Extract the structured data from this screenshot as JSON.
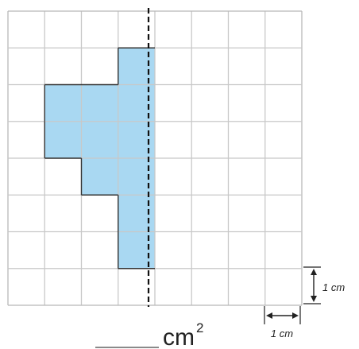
{
  "grid": {
    "rows": 8,
    "cols": 8,
    "line_color": "#c8c8c8",
    "border_color": "#b8b8b8",
    "fill_color": "#a9d8f2",
    "shape_outline_color": "#333333",
    "symmetry_line_color": "#111111",
    "shaded_cells": [
      [
        1,
        3
      ],
      [
        2,
        1
      ],
      [
        2,
        2
      ],
      [
        2,
        3
      ],
      [
        3,
        1
      ],
      [
        3,
        2
      ],
      [
        3,
        3
      ],
      [
        4,
        2
      ],
      [
        4,
        3
      ],
      [
        5,
        3
      ],
      [
        6,
        3
      ]
    ],
    "symmetry_line_after_col": 4
  },
  "dimension_vertical": {
    "label": "1 cm"
  },
  "dimension_horizontal": {
    "label": "1 cm"
  },
  "answer": {
    "blank": "",
    "unit": "cm",
    "exponent": "2"
  }
}
